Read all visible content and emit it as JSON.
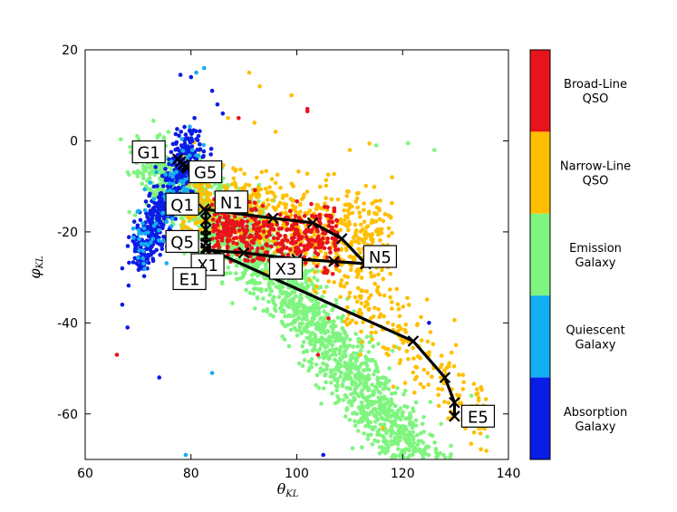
{
  "chart_data": {
    "type": "scatter",
    "xlabel": "θ",
    "xlabel_sub": "KL",
    "ylabel": "φ",
    "ylabel_sub": "KL",
    "xlim": [
      60,
      140
    ],
    "ylim": [
      -70,
      20
    ],
    "x_ticks": [
      60,
      80,
      100,
      120,
      140
    ],
    "y_ticks": [
      20,
      0,
      -20,
      -40,
      -60
    ],
    "grid": false,
    "colorbar": {
      "placement": "right",
      "categories": [
        {
          "label_lines": [
            "Broad-Line",
            "QSO"
          ],
          "color": "#e8141c"
        },
        {
          "label_lines": [
            "Narrow-Line",
            "QSO"
          ],
          "color": "#ffbf00"
        },
        {
          "label_lines": [
            "Emission",
            "Galaxy"
          ],
          "color": "#7ff57f"
        },
        {
          "label_lines": [
            "Quiescent",
            "Galaxy"
          ],
          "color": "#13aef4"
        },
        {
          "label_lines": [
            "Absorption",
            "Galaxy"
          ],
          "color": "#0a1ce5"
        }
      ]
    },
    "tracks": [
      {
        "name": "G",
        "points": [
          [
            77.5,
            -4.0
          ],
          [
            78.0,
            -4.6
          ],
          [
            78.5,
            -5.2
          ],
          [
            79.0,
            -5.6
          ],
          [
            79.3,
            -6.0
          ]
        ],
        "labels": [
          {
            "text": "G1",
            "at": 0
          },
          {
            "text": "G5",
            "at": 4
          }
        ]
      },
      {
        "name": "N",
        "points": [
          [
            82.5,
            -15.0
          ],
          [
            95.5,
            -17.0
          ],
          [
            103.0,
            -18.0
          ],
          [
            108.5,
            -21.5
          ],
          [
            113.0,
            -27.0
          ]
        ],
        "labels": [
          {
            "text": "N1",
            "at": 0
          },
          {
            "text": "N5",
            "at": 4
          }
        ]
      },
      {
        "name": "Q",
        "points": [
          [
            82.8,
            -15.5
          ],
          [
            82.8,
            -17.5
          ],
          [
            82.8,
            -19.5
          ],
          [
            82.8,
            -21.0
          ],
          [
            82.8,
            -22.5
          ]
        ],
        "labels": [
          {
            "text": "Q1",
            "at": 0
          },
          {
            "text": "Q5",
            "at": 4
          }
        ]
      },
      {
        "name": "X",
        "points": [
          [
            82.8,
            -24.0
          ],
          [
            90.0,
            -24.6
          ],
          [
            100.0,
            -26.0
          ],
          [
            107.0,
            -26.5
          ],
          [
            113.0,
            -27.0
          ]
        ],
        "labels": [
          {
            "text": "X1",
            "at": 0
          },
          {
            "text": "X3",
            "at": 2
          }
        ]
      },
      {
        "name": "E",
        "points": [
          [
            82.8,
            -23.5
          ],
          [
            122.0,
            -44.0
          ],
          [
            128.0,
            -52.0
          ],
          [
            129.8,
            -57.5
          ],
          [
            129.8,
            -60.5
          ]
        ],
        "labels": [
          {
            "text": "E1",
            "at": 0
          },
          {
            "text": "E5",
            "at": 4
          }
        ]
      }
    ]
  }
}
